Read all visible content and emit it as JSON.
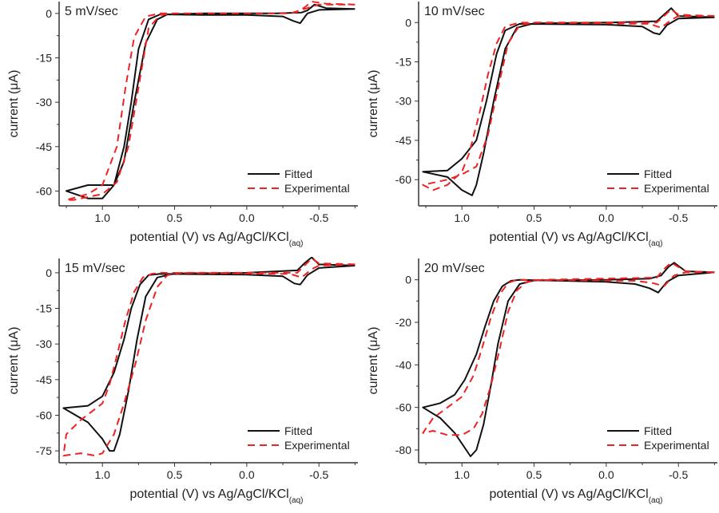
{
  "chart_data": [
    {
      "type": "line",
      "title": "5 mV/sec",
      "xlabel": "potential (V) vs Ag/AgCl/KCl",
      "xlabel_sub": "(aq)",
      "ylabel": "current (μA)",
      "xlim": [
        1.3,
        -0.77
      ],
      "ylim": [
        -65,
        4
      ],
      "xticks": [
        1.0,
        0.5,
        0.0,
        -0.5
      ],
      "xtick_labels": [
        "1.0",
        "0.5",
        "0.0",
        "-0.5"
      ],
      "yticks": [
        0,
        -15,
        -30,
        -45,
        -60
      ],
      "ytick_labels": [
        "0",
        "-15",
        "-30",
        "-45",
        "-60"
      ],
      "legend": "bottom-right",
      "series": [
        {
          "name": "Fitted",
          "color": "#111111",
          "style": "solid",
          "x": [
            -0.75,
            -0.55,
            -0.47,
            -0.42,
            -0.38,
            -0.2,
            0.3,
            0.55,
            0.62,
            0.7,
            0.78,
            0.85,
            0.92,
            1.0,
            1.1,
            1.25,
            1.1,
            1.0,
            0.92,
            0.85,
            0.8,
            0.75,
            0.68,
            0.6,
            0.3,
            0,
            -0.25,
            -0.32,
            -0.37,
            -0.42,
            -0.5,
            -0.75
          ],
          "y": [
            1.5,
            1.8,
            3,
            1,
            0.3,
            0,
            0,
            -0.3,
            -2,
            -10,
            -30,
            -50,
            -58,
            -58,
            -58,
            -60,
            -62.5,
            -62.5,
            -58,
            -45,
            -30,
            -12,
            -2,
            -0.3,
            -0.5,
            -0.5,
            -1,
            -2.5,
            -3.3,
            0,
            1.2,
            1.5
          ]
        },
        {
          "name": "Experimental",
          "color": "#ee2222",
          "style": "dashed",
          "x": [
            -0.75,
            -0.55,
            -0.45,
            -0.4,
            -0.35,
            -0.3,
            0.5,
            0.6,
            0.68,
            0.75,
            0.82,
            0.9,
            1.0,
            1.2,
            1.25,
            1.1,
            1.0,
            0.9,
            0.84,
            0.78,
            0.7,
            0.6,
            0,
            -0.3,
            -0.4,
            -0.5,
            -0.75
          ],
          "y": [
            3,
            3.3,
            4,
            2,
            0.5,
            0,
            0,
            -0.5,
            -5,
            -25,
            -45,
            -57,
            -61,
            -63,
            -63,
            -61,
            -58,
            -45,
            -25,
            -8,
            -1,
            0,
            0,
            0,
            1.5,
            3,
            3
          ]
        }
      ]
    },
    {
      "type": "line",
      "title": "10 mV/sec",
      "xlabel": "potential (V) vs Ag/AgCl/KCl",
      "xlabel_sub": "(aq)",
      "ylabel": "current (μA)",
      "xlim": [
        1.3,
        -0.77
      ],
      "ylim": [
        -70,
        8
      ],
      "xticks": [
        1.0,
        0.5,
        0.0,
        -0.5
      ],
      "xtick_labels": [
        "1.0",
        "0.5",
        "0.0",
        "-0.5"
      ],
      "yticks": [
        0,
        -15,
        -30,
        -45,
        -60
      ],
      "ytick_labels": [
        "0",
        "-15",
        "-30",
        "-45",
        "-60"
      ],
      "legend": "bottom-right",
      "series": [
        {
          "name": "Fitted",
          "color": "#111111",
          "style": "solid",
          "x": [
            -0.75,
            -0.5,
            -0.45,
            -0.4,
            -0.35,
            0,
            0.5,
            0.62,
            0.7,
            0.78,
            0.85,
            0.9,
            0.93,
            1.0,
            1.1,
            1.27,
            1.1,
            1.0,
            0.9,
            0.83,
            0.76,
            0.7,
            0.6,
            0,
            -0.25,
            -0.33,
            -0.37,
            -0.42,
            -0.5,
            -0.75
          ],
          "y": [
            2,
            2.5,
            5.5,
            3,
            0.5,
            0,
            -0.3,
            -2,
            -10,
            -30,
            -50,
            -62,
            -66,
            -64,
            -59,
            -57,
            -56.5,
            -52,
            -45,
            -30,
            -12,
            -3,
            -0.5,
            -0.8,
            -1.5,
            -4,
            -4.5,
            -1,
            1.5,
            2
          ]
        },
        {
          "name": "Experimental",
          "color": "#ee2222",
          "style": "dashed",
          "x": [
            -0.75,
            -0.5,
            -0.45,
            -0.4,
            -0.35,
            0.5,
            0.6,
            0.68,
            0.75,
            0.82,
            0.9,
            1.0,
            1.1,
            1.27,
            1.2,
            1.1,
            1.0,
            0.95,
            0.88,
            0.82,
            0.76,
            0.7,
            0.6,
            -0.3,
            -0.38,
            -0.45,
            -0.5,
            -0.75
          ],
          "y": [
            2.5,
            3,
            5,
            2.5,
            0,
            0,
            -1,
            -8,
            -25,
            -43,
            -55,
            -58,
            -60,
            -62,
            -64,
            -62,
            -57,
            -50,
            -35,
            -20,
            -8,
            -1.5,
            0,
            -0.5,
            -2,
            1,
            2.5,
            2.5
          ]
        }
      ]
    },
    {
      "type": "line",
      "title": "15 mV/sec",
      "xlabel": "potential (V) vs Ag/AgCl/KCl",
      "xlabel_sub": "(aq)",
      "ylabel": "current (μA)",
      "xlim": [
        1.3,
        -0.77
      ],
      "ylim": [
        -80,
        6
      ],
      "xticks": [
        1.0,
        0.5,
        0.0,
        -0.5
      ],
      "xtick_labels": [
        "1.0",
        "0.5",
        "0.0",
        "-0.5"
      ],
      "yticks": [
        0,
        -15,
        -30,
        -45,
        -60,
        -75
      ],
      "ytick_labels": [
        "0",
        "-15",
        "-30",
        "-45",
        "-60",
        "-75"
      ],
      "legend": "bottom-right",
      "series": [
        {
          "name": "Fitted",
          "color": "#111111",
          "style": "solid",
          "x": [
            -0.75,
            -0.5,
            -0.45,
            -0.4,
            -0.35,
            0,
            0.5,
            0.62,
            0.7,
            0.76,
            0.82,
            0.88,
            0.92,
            0.95,
            1.0,
            1.1,
            1.27,
            1.1,
            1.0,
            0.92,
            0.85,
            0.8,
            0.74,
            0.68,
            0.6,
            0,
            -0.25,
            -0.33,
            -0.37,
            -0.42,
            -0.5,
            -0.75
          ],
          "y": [
            3,
            3.5,
            6.5,
            4,
            1,
            0,
            -0.3,
            -2,
            -10,
            -28,
            -50,
            -68,
            -75,
            -75,
            -70,
            -63,
            -57,
            -56,
            -52,
            -42,
            -28,
            -15,
            -5,
            -1,
            -0.5,
            -0.8,
            -1.5,
            -4.5,
            -5,
            -1,
            2,
            3
          ]
        },
        {
          "name": "Experimental",
          "color": "#ee2222",
          "style": "dashed",
          "x": [
            -0.75,
            -0.5,
            -0.45,
            -0.4,
            -0.35,
            0.45,
            0.55,
            0.62,
            0.7,
            0.77,
            0.85,
            0.92,
            1.0,
            1.05,
            1.15,
            1.27,
            1.25,
            1.15,
            1.0,
            0.95,
            0.9,
            0.84,
            0.78,
            0.72,
            0.66,
            0.6,
            -0.3,
            -0.38,
            -0.45,
            -0.5,
            -0.75
          ],
          "y": [
            3.5,
            4,
            6,
            3,
            0,
            0,
            -1,
            -6,
            -20,
            -38,
            -55,
            -68,
            -76,
            -77,
            -76,
            -77,
            -68,
            -62,
            -55,
            -47,
            -35,
            -20,
            -8,
            -2,
            -0.5,
            0,
            -0.5,
            -2,
            1.5,
            3,
            3.5
          ]
        }
      ]
    },
    {
      "type": "line",
      "title": "20 mV/sec",
      "xlabel": "potential (V) vs Ag/AgCl/KCl",
      "xlabel_sub": "(aq)",
      "ylabel": "current (μA)",
      "xlim": [
        1.3,
        -0.77
      ],
      "ylim": [
        -86,
        10
      ],
      "xticks": [
        1.0,
        0.5,
        0.0,
        -0.5
      ],
      "xtick_labels": [
        "1.0",
        "0.5",
        "0.0",
        "-0.5"
      ],
      "yticks": [
        0,
        -20,
        -40,
        -60,
        -80
      ],
      "ytick_labels": [
        "0",
        "-20",
        "-40",
        "-60",
        "-80"
      ],
      "legend": "bottom-right",
      "series": [
        {
          "name": "Fitted",
          "color": "#111111",
          "style": "solid",
          "x": [
            -0.75,
            -0.55,
            -0.47,
            -0.43,
            -0.38,
            -0.3,
            0,
            0.5,
            0.6,
            0.68,
            0.75,
            0.8,
            0.85,
            0.9,
            0.94,
            0.97,
            1.05,
            1.15,
            1.27,
            1.15,
            1.05,
            0.98,
            0.9,
            0.84,
            0.78,
            0.72,
            0.66,
            0.6,
            0,
            -0.2,
            -0.3,
            -0.36,
            -0.42,
            -0.5,
            -0.75
          ],
          "y": [
            3.5,
            4,
            8,
            6,
            2,
            0.5,
            0,
            -0.3,
            -2,
            -10,
            -30,
            -50,
            -68,
            -80,
            -83,
            -80,
            -72,
            -65,
            -60,
            -58,
            -54,
            -47,
            -35,
            -22,
            -10,
            -3,
            -0.5,
            0,
            -1,
            -2,
            -4,
            -6,
            -1,
            2,
            3.5
          ]
        },
        {
          "name": "Experimental",
          "color": "#ee2222",
          "style": "dashed",
          "x": [
            -0.75,
            -0.55,
            -0.45,
            -0.4,
            -0.35,
            0.45,
            0.55,
            0.62,
            0.68,
            0.74,
            0.8,
            0.86,
            0.92,
            1.0,
            1.1,
            1.2,
            1.27,
            1.2,
            1.1,
            1.0,
            0.92,
            0.86,
            0.8,
            0.74,
            0.68,
            0.62,
            -0.2,
            -0.32,
            -0.4,
            -0.47,
            -0.55,
            -0.75
          ],
          "y": [
            3.5,
            4,
            8,
            5,
            1,
            0,
            -1,
            -5,
            -15,
            -33,
            -50,
            -63,
            -70,
            -73,
            -73,
            -71,
            -72,
            -65,
            -60,
            -55,
            -45,
            -32,
            -18,
            -7,
            -1.5,
            0,
            -0.5,
            -1.5,
            -3,
            2,
            3.5,
            3.5
          ]
        }
      ]
    }
  ]
}
